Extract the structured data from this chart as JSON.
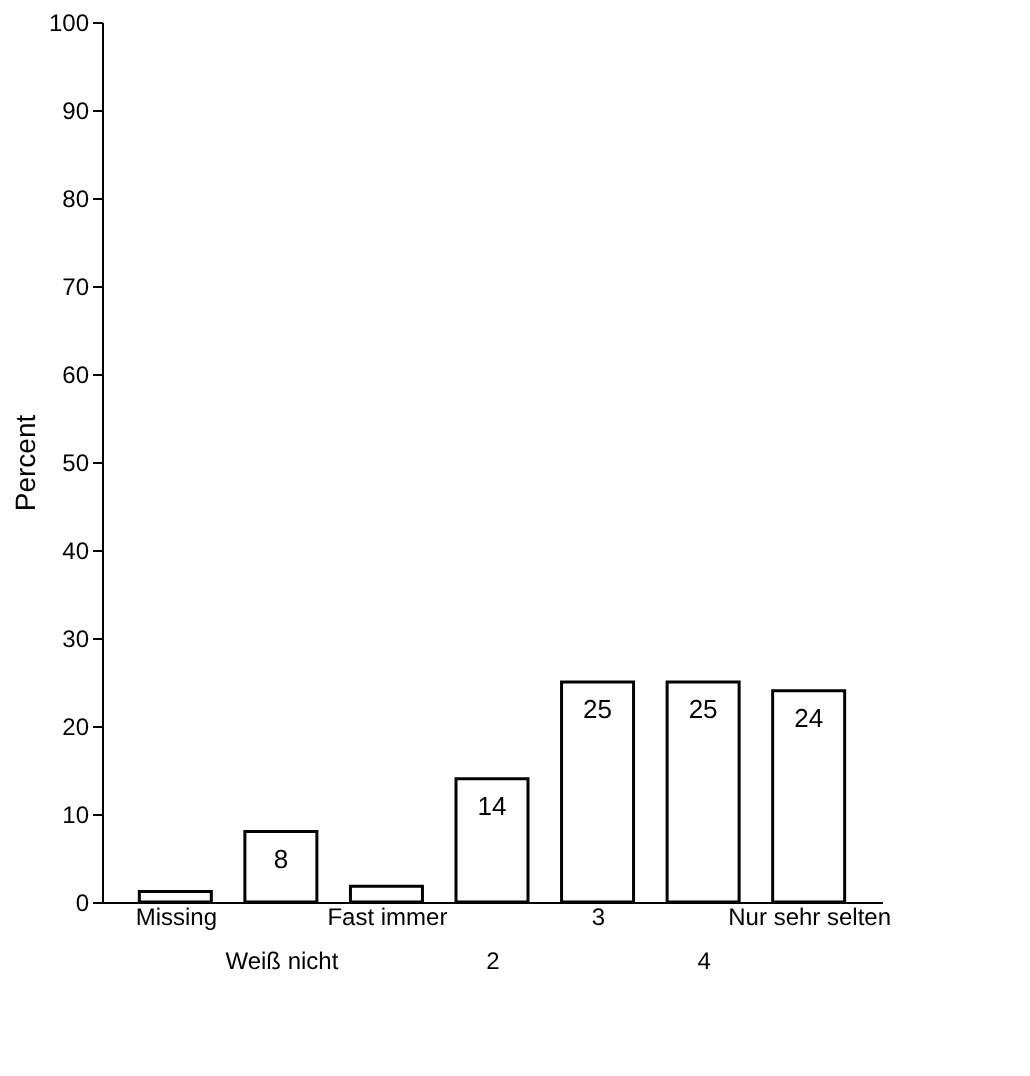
{
  "chart_data": {
    "type": "bar",
    "categories": [
      "Missing",
      "Weiß nicht",
      "Fast immer",
      "2",
      "3",
      "4",
      "Nur sehr selten"
    ],
    "values": [
      1.2,
      8,
      1.8,
      14,
      25,
      25,
      24
    ],
    "value_labels": [
      null,
      "8",
      null,
      "14",
      "25",
      "25",
      "24"
    ],
    "color": "#ffffff",
    "ylabel": "Percent",
    "ylim": [
      0,
      100
    ],
    "yticks": [
      0,
      10,
      20,
      30,
      40,
      50,
      60,
      70,
      80,
      90,
      100
    ],
    "grid": false
  }
}
